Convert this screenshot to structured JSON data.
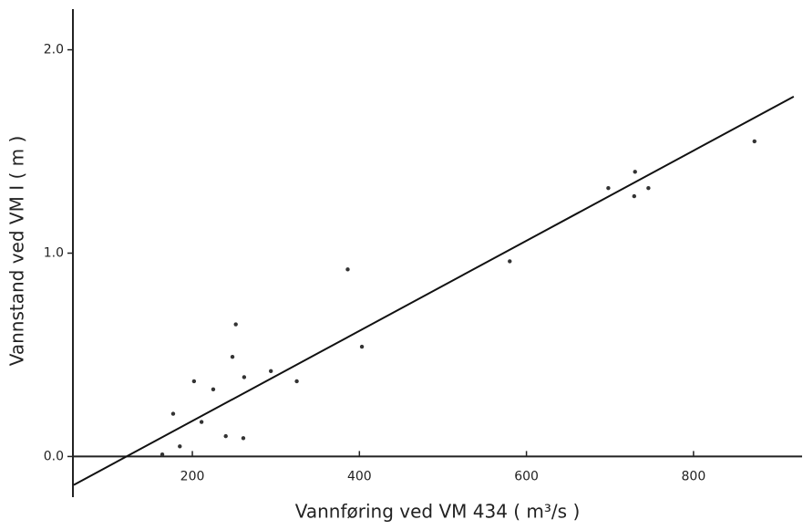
{
  "chart_data": {
    "type": "scatter",
    "x_label": "Vannføring ved VM 434 ( m³/s )",
    "y_label": "Vannstand ved VM I ( m )",
    "xlim": [
      57,
      930
    ],
    "ylim": [
      -0.2,
      2.2
    ],
    "xticks": [
      200,
      400,
      600,
      800
    ],
    "yticks": [
      {
        "value": 0,
        "label": "0.0"
      },
      {
        "value": 1,
        "label": "1.0"
      },
      {
        "value": 2,
        "label": "2.0"
      }
    ],
    "grid": false,
    "color": "#333333",
    "x": [
      164,
      177,
      185,
      202,
      211,
      225,
      240,
      248,
      252,
      261,
      262,
      294,
      325,
      386,
      403,
      580,
      698,
      729,
      730,
      746,
      873
    ],
    "values": [
      0.01,
      0.21,
      0.05,
      0.37,
      0.17,
      0.33,
      0.1,
      0.49,
      0.65,
      0.09,
      0.39,
      0.42,
      0.37,
      0.92,
      0.54,
      0.96,
      1.32,
      1.28,
      1.4,
      1.32,
      1.55
    ],
    "fit": {
      "x": [
        58,
        920
      ],
      "values": [
        -0.14,
        1.77
      ],
      "color": "#111111"
    }
  }
}
